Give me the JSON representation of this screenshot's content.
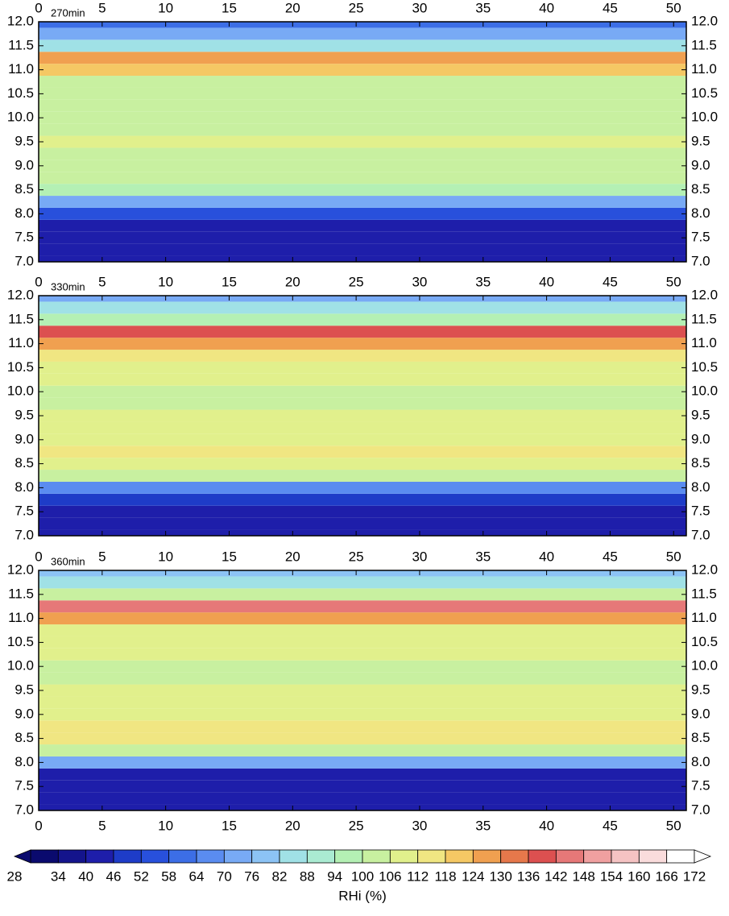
{
  "chart_data": [
    {
      "type": "heatmap",
      "title": "270min",
      "xlim": [
        0,
        51
      ],
      "xticks": [
        0,
        5,
        10,
        15,
        20,
        25,
        30,
        35,
        40,
        45,
        50
      ],
      "ylim": [
        7.0,
        12.0
      ],
      "yticks": [
        {
          "value": 7,
          "label": "7.0"
        },
        7.5,
        {
          "value": 8,
          "label": "8.0"
        },
        8.5,
        {
          "value": 9,
          "label": "9.0"
        },
        9.5,
        {
          "value": 10,
          "label": "10.0"
        },
        10.5,
        {
          "value": 11,
          "label": "11.0"
        },
        11.5,
        {
          "value": 12,
          "label": "12.0"
        }
      ],
      "y": [
        7.0,
        7.25,
        7.5,
        7.75,
        8.0,
        8.25,
        8.5,
        8.75,
        9.0,
        9.25,
        9.5,
        9.75,
        10.0,
        10.25,
        10.5,
        10.75,
        11.0,
        11.25,
        11.5,
        11.75,
        12.0
      ],
      "values": [
        40,
        40,
        40,
        40,
        52,
        70,
        95,
        100,
        102,
        105,
        108,
        104,
        100,
        102,
        100,
        100,
        118,
        128,
        82,
        72,
        62
      ]
    },
    {
      "type": "heatmap",
      "title": "330min",
      "xlim": [
        0,
        51
      ],
      "xticks": [
        0,
        5,
        10,
        15,
        20,
        25,
        30,
        35,
        40,
        45,
        50
      ],
      "ylim": [
        7.0,
        12.0
      ],
      "yticks": [
        {
          "value": 7,
          "label": "7.0"
        },
        7.5,
        {
          "value": 8,
          "label": "8.0"
        },
        8.5,
        {
          "value": 9,
          "label": "9.0"
        },
        9.5,
        {
          "value": 10,
          "label": "10.0"
        },
        10.5,
        {
          "value": 11,
          "label": "11.0"
        },
        11.5,
        {
          "value": 12,
          "label": "12.0"
        }
      ],
      "y": [
        7.0,
        7.25,
        7.5,
        7.75,
        8.0,
        8.25,
        8.5,
        8.75,
        9.0,
        9.25,
        9.5,
        9.75,
        10.0,
        10.25,
        10.5,
        10.75,
        11.0,
        11.25,
        11.5,
        11.75,
        12.0
      ],
      "values": [
        40,
        40,
        40,
        48,
        65,
        100,
        110,
        112,
        110,
        108,
        106,
        104,
        104,
        106,
        108,
        112,
        125,
        140,
        95,
        82,
        74
      ]
    },
    {
      "type": "heatmap",
      "title": "360min",
      "xlim": [
        0,
        51
      ],
      "xticks": [
        0,
        5,
        10,
        15,
        20,
        25,
        30,
        35,
        40,
        45,
        50
      ],
      "ylim": [
        7.0,
        12.0
      ],
      "yticks": [
        {
          "value": 7,
          "label": "7.0"
        },
        7.5,
        {
          "value": 8,
          "label": "8.0"
        },
        8.5,
        {
          "value": 9,
          "label": "9.0"
        },
        9.5,
        {
          "value": 10,
          "label": "10.0"
        },
        10.5,
        {
          "value": 11,
          "label": "11.0"
        },
        11.5,
        {
          "value": 12,
          "label": "12.0"
        }
      ],
      "y": [
        7.0,
        7.25,
        7.5,
        7.75,
        8.0,
        8.25,
        8.5,
        8.75,
        9.0,
        9.25,
        9.5,
        9.75,
        10.0,
        10.25,
        10.5,
        10.75,
        11.0,
        11.25,
        11.5,
        11.75,
        12.0
      ],
      "values": [
        42,
        42,
        42,
        45,
        70,
        105,
        112,
        112,
        110,
        108,
        106,
        104,
        104,
        106,
        108,
        110,
        125,
        142,
        100,
        85,
        80
      ]
    },
    {
      "type": "colorbar",
      "xlabel": "RHi (%)",
      "levels": [
        28,
        34,
        40,
        46,
        52,
        58,
        64,
        70,
        76,
        82,
        88,
        94,
        100,
        106,
        112,
        118,
        124,
        130,
        136,
        142,
        148,
        154,
        160,
        166,
        172
      ],
      "colors": [
        "#0a0a6e",
        "#14148c",
        "#1e1eaa",
        "#1e3cc8",
        "#2850dc",
        "#3c6ee6",
        "#5a8cf0",
        "#78aaf5",
        "#8cc3f5",
        "#a0e1e6",
        "#aaebd2",
        "#b4f0b4",
        "#c8f0a0",
        "#e1f08c",
        "#f0e682",
        "#f5c864",
        "#f0a050",
        "#e6784b",
        "#dc5050",
        "#e67878",
        "#f0a0a0",
        "#f5c3c3",
        "#fadcdc",
        "#ffffff"
      ]
    }
  ]
}
